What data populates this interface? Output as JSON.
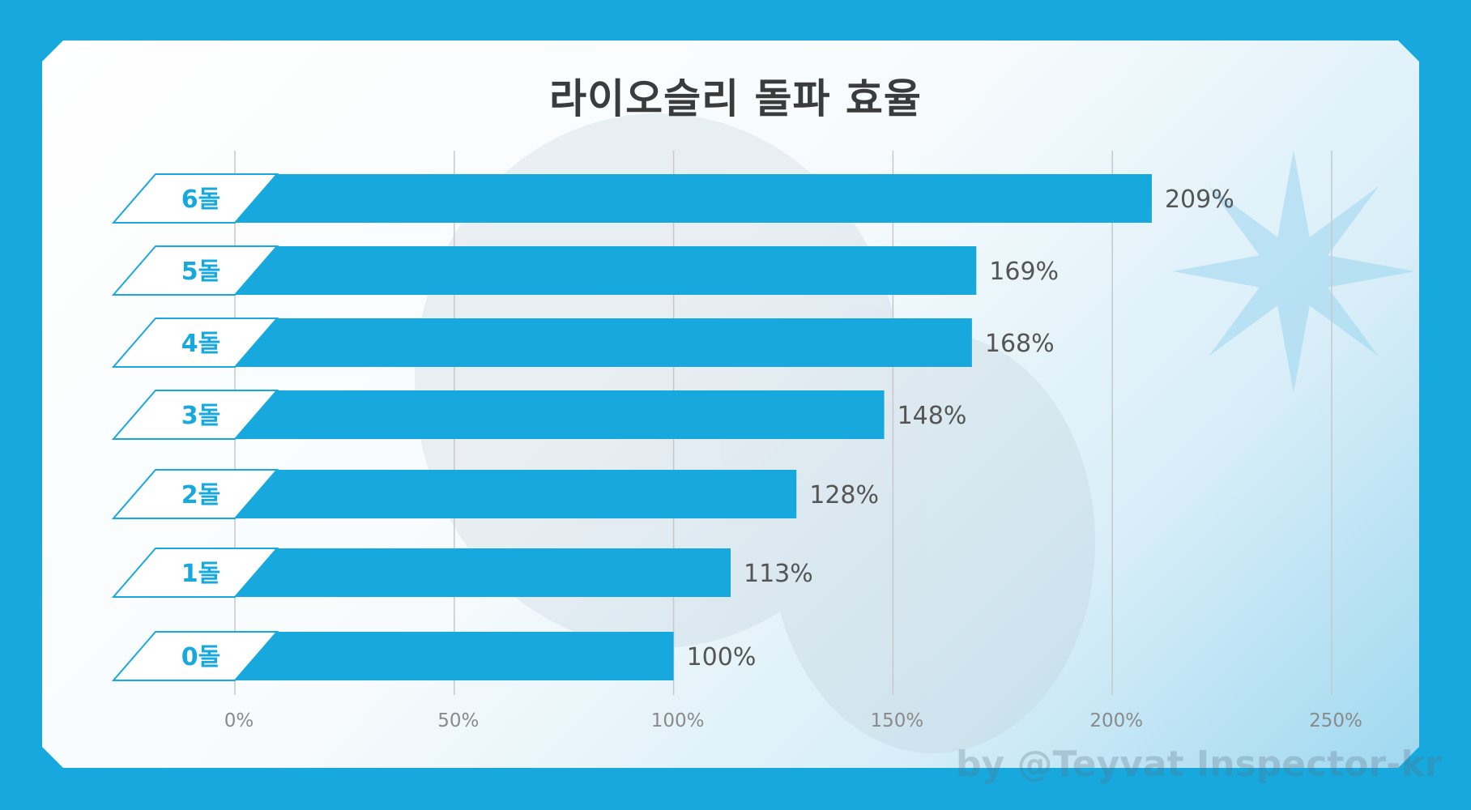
{
  "colors": {
    "background": "#17a9dd",
    "bar": "#17a9dd",
    "label_text": "#17a9dd",
    "value_text": "#555555",
    "grid": "#c8c8c8",
    "title": "#3b3b3b"
  },
  "watermark": "by @Teyvat Inspector-kr",
  "chart_data": {
    "type": "bar",
    "orientation": "horizontal",
    "title": "라이오슬리 돌파 효율",
    "categories": [
      "6돌",
      "5돌",
      "4돌",
      "3돌",
      "2돌",
      "1돌",
      "0돌"
    ],
    "values": [
      209,
      169,
      168,
      148,
      128,
      113,
      100
    ],
    "value_labels": [
      "209%",
      "169%",
      "168%",
      "148%",
      "128%",
      "113%",
      "100%"
    ],
    "xlim": [
      0,
      250
    ],
    "xticks": [
      0,
      50,
      100,
      150,
      200,
      250
    ],
    "xtick_labels": [
      "0%",
      "50%",
      "100%",
      "150%",
      "200%",
      "250%"
    ],
    "grid": true
  }
}
